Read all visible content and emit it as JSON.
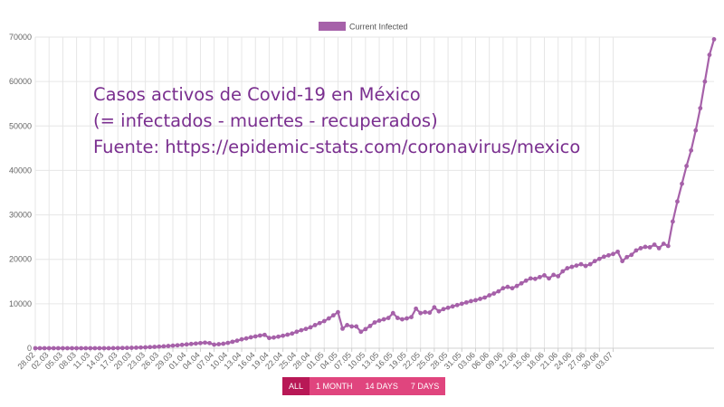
{
  "chart_data": {
    "type": "line",
    "annotation": [
      "Casos activos de Covid-19 en México",
      "(= infectados - muertes - recuperados)",
      "Fuente: https://epidemic-stats.com/coronavirus/mexico"
    ],
    "series": [
      {
        "name": "Current Infected",
        "color": "#a661a9",
        "values": [
          0,
          0,
          0,
          0,
          0,
          0,
          0,
          0,
          0,
          0,
          0,
          0,
          0,
          0,
          0,
          0,
          0,
          10,
          30,
          50,
          70,
          90,
          120,
          160,
          200,
          250,
          300,
          360,
          420,
          500,
          580,
          660,
          750,
          850,
          950,
          1050,
          1150,
          1250,
          1150,
          800,
          900,
          1000,
          1200,
          1450,
          1700,
          2000,
          2200,
          2450,
          2650,
          2850,
          3000,
          2300,
          2400,
          2600,
          2800,
          3050,
          3300,
          3700,
          4050,
          4350,
          4700,
          5200,
          5650,
          6100,
          6700,
          7400,
          8100,
          4400,
          5200,
          4900,
          4900,
          3700,
          4300,
          5000,
          5800,
          6200,
          6500,
          6800,
          7900,
          6800,
          6500,
          6700,
          7000,
          8900,
          7900,
          8100,
          8000,
          9200,
          8300,
          8800,
          9100,
          9400,
          9700,
          10000,
          10300,
          10600,
          10800,
          11100,
          11400,
          11900,
          12300,
          12800,
          13500,
          13800,
          13500,
          14000,
          14600,
          15200,
          15700,
          15600,
          16000,
          16400,
          15700,
          16500,
          16200,
          17300,
          18000,
          18300,
          18600,
          18900,
          18500,
          18900,
          19600,
          20100,
          20600,
          20900,
          21200,
          21700,
          19600,
          20500,
          21000,
          22000,
          22500,
          22800,
          22700,
          23300,
          22500,
          23500,
          23000,
          28500,
          33000,
          37000,
          41000,
          44500,
          49000,
          54000,
          60000,
          66000,
          69500
        ]
      }
    ],
    "x_start": "28.02",
    "x_tick_labels": [
      "28.02",
      "02.03",
      "05.03",
      "08.03",
      "11.03",
      "14.03",
      "17.03",
      "20.03",
      "23.03",
      "26.03",
      "29.03",
      "01.04",
      "04.04",
      "07.04",
      "10.04",
      "13.04",
      "16.04",
      "19.04",
      "22.04",
      "25.04",
      "28.04",
      "01.05",
      "04.05",
      "07.05",
      "10.05",
      "13.05",
      "16.05",
      "19.05",
      "22.05",
      "25.05",
      "28.05",
      "31.05",
      "03.06",
      "06.06",
      "09.06",
      "12.06",
      "15.06",
      "18.06",
      "21.06",
      "24.06",
      "27.06",
      "30.06",
      "03.07"
    ],
    "y_ticks": [
      0,
      10000,
      20000,
      30000,
      40000,
      50000,
      60000,
      70000
    ],
    "ylim": [
      0,
      70000
    ],
    "grid": true,
    "legend_position": "top-center",
    "colors": {
      "line": "#a661a9",
      "grid": "#e6e6e6",
      "annotation": "#7a2f8f"
    }
  },
  "range_buttons": {
    "all": "ALL",
    "one_month": "1 MONTH",
    "fourteen_days": "14 DAYS",
    "seven_days": "7 DAYS",
    "active": "ALL",
    "active_color": "#b81856",
    "color": "#e0457e"
  }
}
